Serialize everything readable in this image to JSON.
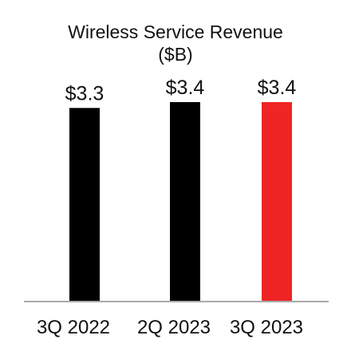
{
  "chart_data": {
    "type": "bar",
    "title": "Wireless Service Revenue",
    "subtitle": "($B)",
    "categories": [
      "3Q 2022",
      "2Q 2023",
      "3Q 2023"
    ],
    "values": [
      3.3,
      3.4,
      3.4
    ],
    "data_labels": [
      "$3.3",
      "$3.4",
      "$3.4"
    ],
    "bar_colors": [
      "#000000",
      "#000000",
      "#ee2524"
    ],
    "axis_color": "#aaaaaa",
    "ylim": [
      0,
      3.4
    ],
    "grid": false,
    "legend": "none"
  }
}
